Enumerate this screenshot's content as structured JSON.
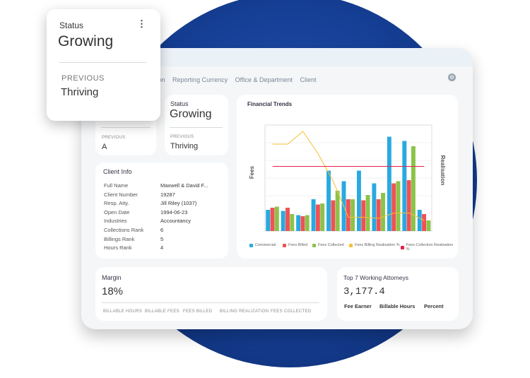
{
  "colors": {
    "commercial": "#29a9e0",
    "fees_billed": "#ee5254",
    "fees_collected": "#8bc34a",
    "billing_realisation": "#f5c132",
    "collection_realisation": "#e91e4b"
  },
  "tabs": [
    "ulation",
    "Reporting Currency",
    "Office & Department",
    "Client"
  ],
  "status_card": {
    "title": "Status",
    "value": "Growing",
    "previous_label": "PREVIOUS",
    "previous_value": "Thriving"
  },
  "left_small_card": {
    "previous_label": "PREVIOUS",
    "previous_value": "A"
  },
  "client_info": {
    "title": "Client Info",
    "rows": [
      {
        "k": "Full Name",
        "v": "Maxwell & David F..."
      },
      {
        "k": "Client Number",
        "v": "19287"
      },
      {
        "k": "Resp. Atty.",
        "v": "Jill Riley (1037)"
      },
      {
        "k": "Open Date",
        "v": "1994-06-23"
      },
      {
        "k": "Industries",
        "v": "Accountancy"
      },
      {
        "k": "Collections Rank",
        "v": "6"
      },
      {
        "k": "Billings Rank",
        "v": "5"
      },
      {
        "k": "Hours Rank",
        "v": "4"
      }
    ]
  },
  "financial_trends": {
    "title": "Financial Trends",
    "ylabel": "Fees",
    "y2label": "Realisation"
  },
  "chart_data": {
    "type": "bar",
    "title": "Financial Trends",
    "ylabel": "Fees",
    "y2label": "Realisation",
    "ylim": [
      0,
      100
    ],
    "categories": [
      "",
      "",
      "",
      "",
      "",
      "",
      "",
      "",
      "",
      "",
      ""
    ],
    "series": [
      {
        "name": "Commercial",
        "values": [
          20,
          19,
          15,
          30,
          57,
          47,
          57,
          45,
          89,
          85,
          20
        ]
      },
      {
        "name": "Fees Billed",
        "values": [
          22,
          22,
          14,
          25,
          29,
          30,
          29,
          30,
          45,
          48,
          16
        ]
      },
      {
        "name": "Fees Collected",
        "values": [
          23,
          16,
          15,
          26,
          38,
          30,
          34,
          36,
          47,
          80,
          10
        ]
      }
    ],
    "lines": [
      {
        "name": "Fees Billing Realisation %",
        "values": [
          82,
          82,
          94,
          73,
          47,
          13,
          13,
          12,
          17,
          17,
          10
        ]
      },
      {
        "name": "Fees Collection Realisation %",
        "values": [
          61,
          61,
          61,
          61,
          61,
          61,
          61,
          61,
          61,
          61,
          61
        ]
      }
    ]
  },
  "legend": [
    "Commercial",
    "Fees Billed",
    "Fees Collected",
    "Fees Billing Realisation %",
    "Fees Collection Realisation %"
  ],
  "margin": {
    "title": "Margin",
    "value": "18%",
    "metrics": [
      "BILLABLE HOURS",
      "BILLABLE FEES",
      "FEES BILLED",
      "BILLING REALIZATION",
      "FEES COLLECTED"
    ]
  },
  "attorneys": {
    "title": "Top 7 Working Attorneys",
    "value": "3,177.4",
    "headers": [
      "Fee Earner",
      "Billable Hours",
      "Percent"
    ]
  }
}
